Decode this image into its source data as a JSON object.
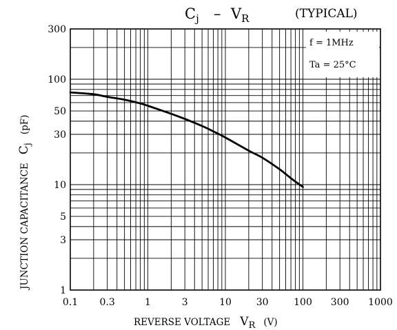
{
  "chart_data": {
    "type": "line",
    "title_left": "C",
    "title_left_sub": "j",
    "title_dash": "–",
    "title_right": "V",
    "title_right_sub": "R",
    "title_note": "(TYPICAL)",
    "xlabel": "REVERSE VOLTAGE",
    "xlabel_symbol": "V",
    "xlabel_symbol_sub": "R",
    "xlabel_unit": "(V)",
    "ylabel": "JUNCTION CAPACITANCE",
    "ylabel_symbol": "C",
    "ylabel_symbol_sub": "j",
    "ylabel_unit": "(pF)",
    "x_scale": "log",
    "y_scale": "log",
    "xlim": [
      0.1,
      1000
    ],
    "ylim": [
      1,
      300
    ],
    "grid": true,
    "x_ticks": [
      {
        "value": 0.1,
        "label": "0.1"
      },
      {
        "value": 0.3,
        "label": "0.3"
      },
      {
        "value": 1,
        "label": "1"
      },
      {
        "value": 3,
        "label": "3"
      },
      {
        "value": 10,
        "label": "10"
      },
      {
        "value": 30,
        "label": "30"
      },
      {
        "value": 100,
        "label": "100"
      },
      {
        "value": 300,
        "label": "300"
      },
      {
        "value": 1000,
        "label": "1000"
      }
    ],
    "y_ticks": [
      {
        "value": 1,
        "label": "1"
      },
      {
        "value": 3,
        "label": "3"
      },
      {
        "value": 5,
        "label": "5"
      },
      {
        "value": 10,
        "label": "10"
      },
      {
        "value": 30,
        "label": "30"
      },
      {
        "value": 50,
        "label": "50"
      },
      {
        "value": 100,
        "label": "100"
      },
      {
        "value": 300,
        "label": "300"
      }
    ],
    "conditions": [
      "f = 1MHz",
      "Ta = 25°C"
    ],
    "series": [
      {
        "x": [
          0.1,
          0.2,
          0.3,
          0.5,
          0.8,
          1,
          2,
          3,
          5,
          7,
          10,
          20,
          30,
          50,
          70,
          100
        ],
        "y": [
          75,
          72,
          68,
          64,
          59,
          56,
          47,
          42,
          36,
          32,
          28,
          21,
          18,
          14,
          11.5,
          9.5
        ]
      }
    ]
  }
}
